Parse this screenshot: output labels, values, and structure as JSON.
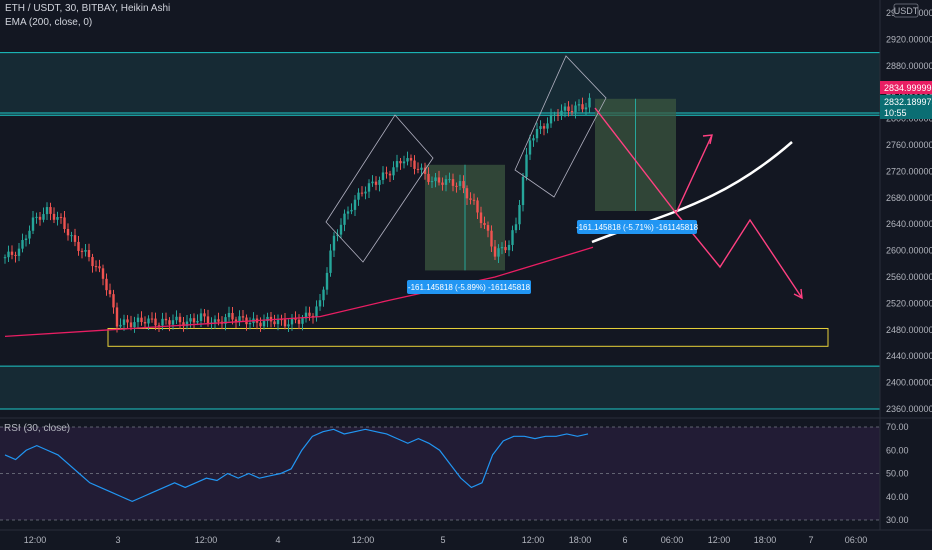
{
  "legend": {
    "symbol": "ETH / USDT, 30, BITBAY, Heikin Ashi",
    "ema": "EMA (200, close, 0)",
    "rsi": "RSI (30, close)"
  },
  "currency": "USDT",
  "colors": {
    "bg": "#131722",
    "up": "#26a69a",
    "down": "#ef5350",
    "ema": "#e91e63",
    "zone": "#1cc8c8",
    "support": "#e8d23a",
    "rsi": "#2196f3",
    "projection": "#ff4081",
    "trend": "#ffffff",
    "measure": "#2196f3"
  },
  "price_badges": {
    "current": "2834.999998",
    "last": "2832.189973",
    "countdown": "10:55"
  },
  "measure_labels": {
    "first": "-161.145818 (-5.89%) -161145818",
    "second": "-161.145818 (-5.71%) -161145818"
  },
  "chart_data": [
    {
      "type": "candlestick",
      "title": "ETH / USDT, 30, BITBAY, Heikin Ashi",
      "y_ticks": [
        "2960.000000",
        "2920.000000",
        "2880.000000",
        "2840.000000",
        "2800.000000",
        "2760.000000",
        "2720.000000",
        "2680.000000",
        "2640.000000",
        "2600.000000",
        "2560.000000",
        "2520.000000",
        "2480.000000",
        "2440.000000",
        "2400.000000",
        "2360.000000"
      ],
      "x_ticks": [
        "12:00",
        "3",
        "12:00",
        "4",
        "12:00",
        "5",
        "12:00",
        "18:00",
        "6",
        "06:00",
        "12:00",
        "18:00",
        "7",
        "06:00"
      ],
      "ylim": [
        2350,
        2970
      ],
      "grid": false,
      "close_path": [
        [
          0,
          2590
        ],
        [
          4,
          2600
        ],
        [
          8,
          2645
        ],
        [
          12,
          2660
        ],
        [
          16,
          2645
        ],
        [
          20,
          2610
        ],
        [
          24,
          2590
        ],
        [
          28,
          2560
        ],
        [
          30,
          2530
        ],
        [
          32,
          2490
        ],
        [
          36,
          2490
        ],
        [
          40,
          2495
        ],
        [
          44,
          2490
        ],
        [
          48,
          2495
        ],
        [
          52,
          2490
        ],
        [
          56,
          2500
        ],
        [
          60,
          2490
        ],
        [
          64,
          2500
        ],
        [
          68,
          2495
        ],
        [
          72,
          2490
        ],
        [
          76,
          2495
        ],
        [
          80,
          2490
        ],
        [
          84,
          2495
        ],
        [
          88,
          2505
        ],
        [
          90,
          2520
        ],
        [
          94,
          2620
        ],
        [
          98,
          2660
        ],
        [
          102,
          2690
        ],
        [
          106,
          2705
        ],
        [
          110,
          2720
        ],
        [
          114,
          2740
        ],
        [
          118,
          2725
        ],
        [
          122,
          2705
        ],
        [
          126,
          2705
        ],
        [
          130,
          2700
        ],
        [
          134,
          2670
        ],
        [
          138,
          2625
        ],
        [
          140,
          2595
        ],
        [
          144,
          2610
        ],
        [
          146,
          2640
        ],
        [
          148,
          2710
        ],
        [
          150,
          2770
        ],
        [
          154,
          2790
        ],
        [
          158,
          2810
        ],
        [
          162,
          2815
        ],
        [
          166,
          2820
        ],
        [
          168,
          2832
        ]
      ],
      "ema": [
        [
          0,
          2470
        ],
        [
          30,
          2480
        ],
        [
          60,
          2490
        ],
        [
          90,
          2500
        ],
        [
          110,
          2525
        ],
        [
          140,
          2560
        ],
        [
          168,
          2605
        ]
      ],
      "zones": [
        [
          2805,
          2900
        ],
        [
          2425,
          2360
        ]
      ],
      "support_box": [
        2482,
        2455
      ],
      "trend_line": [
        [
          2625
        ],
        [
          2770
        ]
      ],
      "measure_boxes": [
        {
          "from": 2730,
          "to": 2570
        },
        {
          "from": 2830,
          "to": 2660
        }
      ]
    },
    {
      "type": "line",
      "title": "RSI (30, close)",
      "y_ticks": [
        "70.00",
        "60.00",
        "50.00",
        "40.00",
        "30.00"
      ],
      "ylim": [
        27,
        73
      ],
      "bands": [
        70,
        30
      ],
      "midline": 50,
      "values": [
        58,
        56,
        60,
        62,
        60,
        58,
        54,
        50,
        46,
        44,
        42,
        40,
        38,
        40,
        42,
        44,
        46,
        44,
        46,
        48,
        47,
        50,
        48,
        50,
        48,
        49,
        50,
        52,
        60,
        66,
        68,
        69,
        67,
        68,
        69,
        68,
        67,
        65,
        63,
        65,
        63,
        60,
        54,
        48,
        44,
        46,
        58,
        64,
        66,
        66,
        65,
        66,
        66,
        67,
        66,
        67
      ]
    }
  ]
}
